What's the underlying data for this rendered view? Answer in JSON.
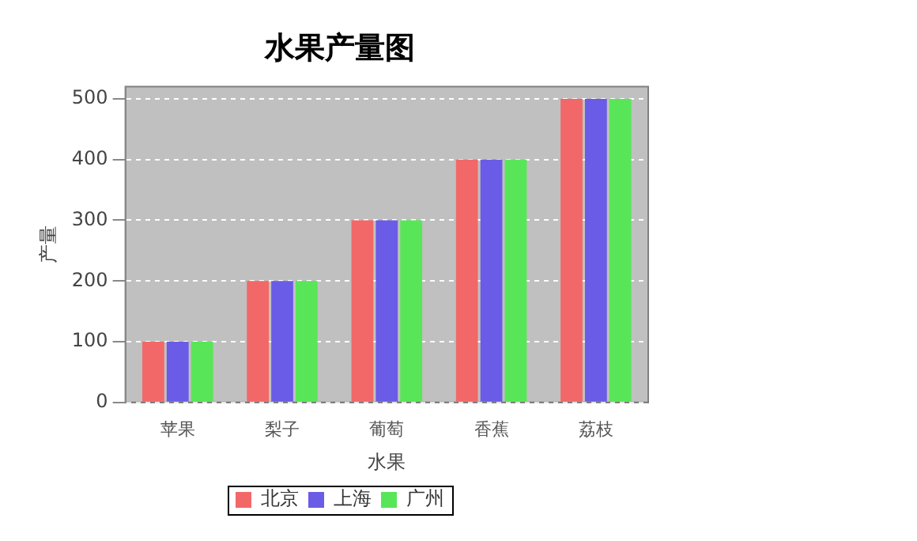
{
  "chart_data": {
    "type": "bar",
    "title": "水果产量图",
    "xlabel": "水果",
    "ylabel": "产量",
    "categories": [
      "苹果",
      "梨子",
      "葡萄",
      "香蕉",
      "荔枝"
    ],
    "series": [
      {
        "name": "北京",
        "color": "#f26868",
        "values": [
          100,
          200,
          300,
          400,
          500
        ]
      },
      {
        "name": "上海",
        "color": "#6a5ce6",
        "values": [
          100,
          200,
          300,
          400,
          500
        ]
      },
      {
        "name": "广州",
        "color": "#58e658",
        "values": [
          100,
          200,
          300,
          400,
          500
        ]
      }
    ],
    "ylim": [
      0,
      520
    ],
    "yticks": [
      0,
      100,
      200,
      300,
      400,
      500
    ],
    "grid": "y",
    "legend": "bottom"
  }
}
